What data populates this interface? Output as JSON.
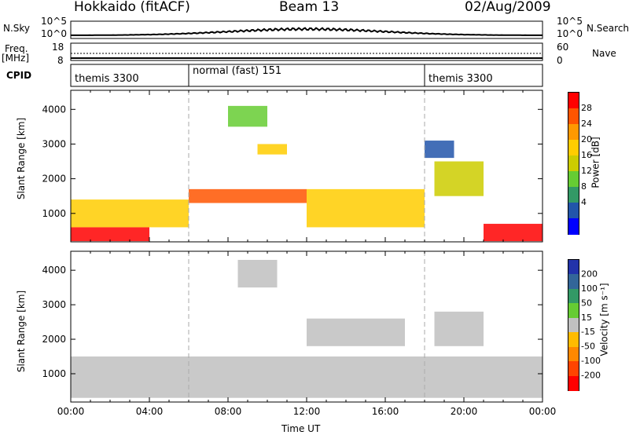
{
  "header": {
    "site": "Hokkaido (fitACF)",
    "beam": "Beam 13",
    "date": "02/Aug/2009"
  },
  "sky_panel": {
    "left_label": "N.Sky",
    "right_label": "N.Search",
    "ticks_left": [
      "10^5",
      "10^0"
    ],
    "ticks_right": [
      "10^5",
      "10^0"
    ]
  },
  "freq_panel": {
    "left_label_1": "Freq.",
    "left_label_2": "[MHz]",
    "right_label": "Nave",
    "ticks_left": [
      "18",
      "8"
    ],
    "ticks_right": [
      "60",
      "0"
    ]
  },
  "cpid": {
    "label": "CPID",
    "segments": [
      {
        "name": "themis 3300",
        "start_hour": 0
      },
      {
        "name": "normal (fast) 151",
        "start_hour": 6
      },
      {
        "name": "themis 3300",
        "start_hour": 18
      }
    ]
  },
  "power_colorbar": {
    "label": "Power [dB]",
    "ticks": [
      "28",
      "24",
      "20",
      "16",
      "12",
      "8",
      "4"
    ],
    "colors": [
      "#ff0000",
      "#ff5500",
      "#ff9900",
      "#ffcc00",
      "#cccc00",
      "#66cc33",
      "#339966",
      "#2255aa",
      "#0000ff"
    ]
  },
  "velocity_colorbar": {
    "label": "Velocity [m s⁻¹]",
    "ticks": [
      "200",
      "100",
      "50",
      "15",
      "-15",
      "-50",
      "-100",
      "-200"
    ],
    "colors": [
      "#2233aa",
      "#336699",
      "#339966",
      "#66cc33",
      "#c0c0c0",
      "#ffbb00",
      "#ff8800",
      "#ff4400",
      "#ff0000"
    ]
  },
  "chart_data": [
    {
      "type": "heatmap",
      "name": "power",
      "ylabel": "Slant Range [km]",
      "yticks": [
        1000,
        2000,
        3000,
        4000
      ],
      "ylim": [
        180,
        4550
      ],
      "xlim": [
        0,
        24
      ],
      "mode_change_hours": [
        6,
        18
      ],
      "regions": [
        {
          "x": [
            0,
            4
          ],
          "y": [
            200,
            600
          ],
          "value": 28
        },
        {
          "x": [
            0,
            6
          ],
          "y": [
            600,
            1400
          ],
          "value": 20
        },
        {
          "x": [
            6,
            12
          ],
          "y": [
            1300,
            1700
          ],
          "value": 24
        },
        {
          "x": [
            9.5,
            11
          ],
          "y": [
            2700,
            3000
          ],
          "value": 20
        },
        {
          "x": [
            8,
            10
          ],
          "y": [
            3500,
            4100
          ],
          "value": 12
        },
        {
          "x": [
            12,
            18
          ],
          "y": [
            600,
            1700
          ],
          "value": 20
        },
        {
          "x": [
            18.5,
            21
          ],
          "y": [
            1500,
            2500
          ],
          "value": 16
        },
        {
          "x": [
            18,
            19.5
          ],
          "y": [
            2600,
            3100
          ],
          "value": 8
        },
        {
          "x": [
            21,
            24
          ],
          "y": [
            200,
            700
          ],
          "value": 28
        }
      ]
    },
    {
      "type": "heatmap",
      "name": "velocity",
      "ylabel": "Slant Range [km]",
      "yticks": [
        1000,
        2000,
        3000,
        4000
      ],
      "ylim": [
        180,
        4550
      ],
      "xlim": [
        0,
        24
      ],
      "xlabel": "Time UT",
      "xticks": [
        "00:00",
        "04:00",
        "08:00",
        "12:00",
        "16:00",
        "20:00",
        "00:00"
      ],
      "mode_change_hours": [
        6,
        18
      ],
      "regions": [
        {
          "x": [
            0,
            24
          ],
          "y": [
            300,
            1500
          ],
          "value": 0
        },
        {
          "x": [
            8.5,
            10.5
          ],
          "y": [
            3500,
            4300
          ],
          "value": 0
        },
        {
          "x": [
            12,
            17
          ],
          "y": [
            1800,
            2600
          ],
          "value": 0
        },
        {
          "x": [
            18.5,
            21
          ],
          "y": [
            1800,
            2800
          ],
          "value": 0
        }
      ]
    }
  ]
}
